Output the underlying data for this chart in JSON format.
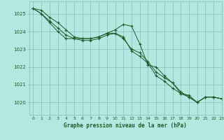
{
  "title": "Graphe pression niveau de la mer (hPa)",
  "background_color": "#b2e8e0",
  "grid_color": "#80bfb8",
  "line_color": "#1a5c28",
  "xlim": [
    -0.5,
    23
  ],
  "ylim": [
    1019.3,
    1025.7
  ],
  "yticks": [
    1020,
    1021,
    1022,
    1023,
    1024,
    1025
  ],
  "xticks": [
    0,
    1,
    2,
    3,
    4,
    5,
    6,
    7,
    8,
    9,
    10,
    11,
    12,
    13,
    14,
    15,
    16,
    17,
    18,
    19,
    20,
    21,
    22,
    23
  ],
  "series": [
    [
      1025.3,
      1025.2,
      1024.8,
      1024.5,
      1024.1,
      1023.7,
      1023.6,
      1023.6,
      1023.7,
      1023.9,
      1024.1,
      1024.4,
      1024.3,
      1023.3,
      1022.1,
      1022.0,
      1021.5,
      1021.1,
      1020.5,
      1020.4,
      1020.0,
      1020.3,
      1020.3,
      1020.2
    ],
    [
      1025.3,
      1025.0,
      1024.6,
      1024.2,
      1023.8,
      1023.6,
      1023.5,
      1023.5,
      1023.6,
      1023.8,
      1023.9,
      1023.7,
      1022.9,
      1022.6,
      1022.2,
      1021.5,
      1021.2,
      1020.8,
      1020.5,
      1020.3,
      1020.0,
      1020.3,
      1020.3,
      1020.2
    ],
    [
      1025.3,
      1025.0,
      1024.5,
      1024.0,
      1023.6,
      1023.6,
      1023.6,
      1023.6,
      1023.7,
      1023.9,
      1023.9,
      1023.6,
      1023.0,
      1022.8,
      1022.3,
      1021.7,
      1021.4,
      1021.1,
      1020.6,
      1020.3,
      1020.0,
      1020.3,
      1020.3,
      1020.2
    ]
  ]
}
